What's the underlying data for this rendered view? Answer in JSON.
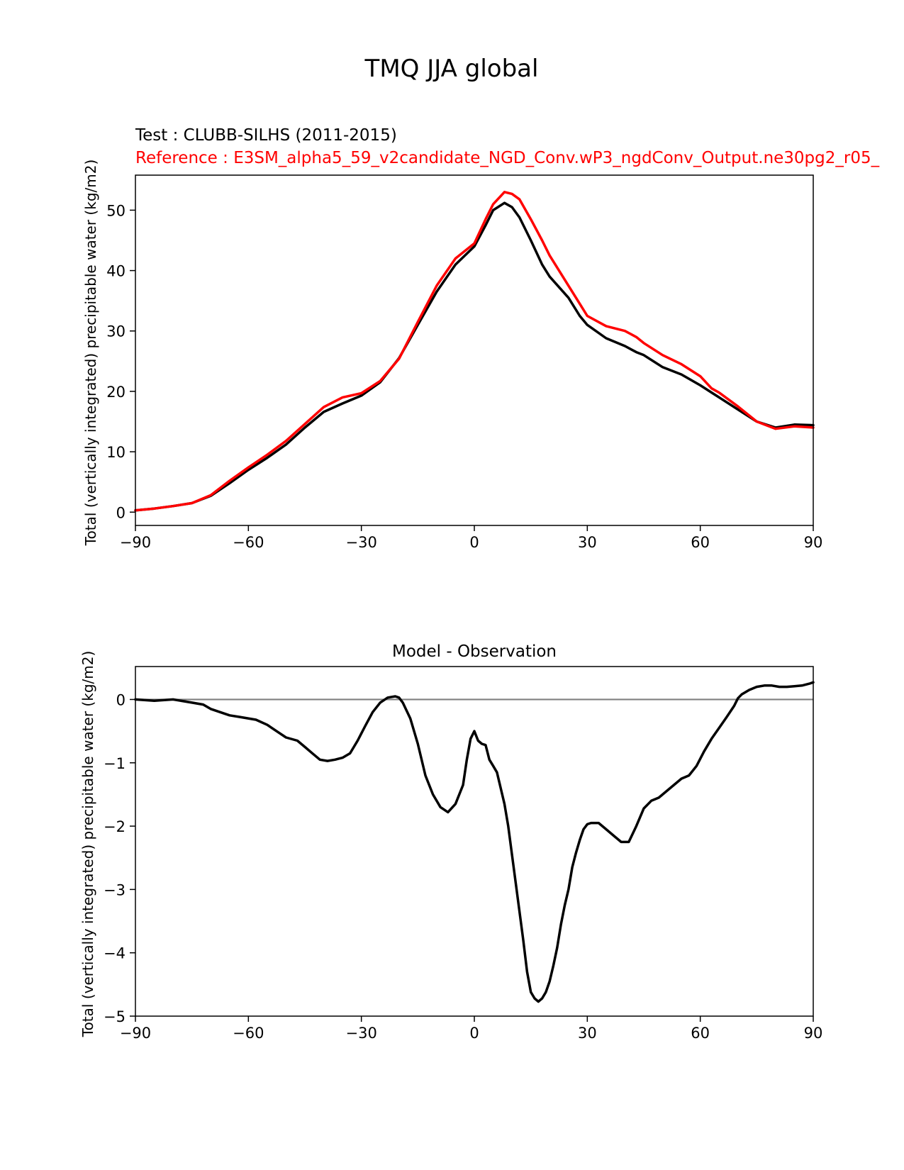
{
  "figure_title": "TMQ JJA global",
  "chart_data": [
    {
      "type": "line",
      "test_label": "Test : CLUBB-SILHS (2011-2015)",
      "reference_label": "Reference : E3SM_alpha5_59_v2candidate_NGD_Conv.wP3_ngdConv_Output.ne30pg2_r05_",
      "ylabel": "Total (vertically integrated) precipitable water (kg/m2)",
      "xlabel": "",
      "xlim": [
        -90,
        90
      ],
      "ylim": [
        -2.2,
        55.8
      ],
      "xticks": [
        -90,
        -60,
        -30,
        0,
        30,
        60,
        90
      ],
      "xtick_labels": [
        "−90",
        "−60",
        "−30",
        "0",
        "30",
        "60",
        "90"
      ],
      "yticks": [
        0,
        10,
        20,
        30,
        40,
        50
      ],
      "ytick_labels": [
        "0",
        "10",
        "20",
        "30",
        "40",
        "50"
      ],
      "x": [
        -90,
        -85,
        -80,
        -75,
        -70,
        -65,
        -60,
        -55,
        -50,
        -45,
        -40,
        -35,
        -30,
        -25,
        -20,
        -15,
        -10,
        -5,
        0,
        3,
        5,
        8,
        10,
        12,
        15,
        18,
        20,
        25,
        28,
        30,
        35,
        40,
        43,
        45,
        50,
        55,
        60,
        63,
        65,
        70,
        75,
        80,
        85,
        90
      ],
      "series": [
        {
          "name": "Test",
          "color": "#000000",
          "values": [
            0.3,
            0.6,
            1.0,
            1.5,
            2.7,
            4.8,
            7.0,
            9.0,
            11.2,
            14.0,
            16.6,
            18.0,
            19.3,
            21.5,
            25.5,
            31.0,
            36.5,
            41.0,
            44.0,
            47.5,
            50.0,
            51.2,
            50.5,
            48.8,
            45.0,
            41.0,
            39.0,
            35.5,
            32.5,
            31.0,
            28.8,
            27.5,
            26.5,
            26.0,
            24.0,
            22.8,
            21.0,
            19.8,
            19.0,
            17.0,
            15.0,
            14.0,
            14.5,
            14.4
          ]
        },
        {
          "name": "Reference",
          "color": "#ff0000",
          "values": [
            0.3,
            0.6,
            1.0,
            1.5,
            2.8,
            5.2,
            7.4,
            9.5,
            11.8,
            14.6,
            17.4,
            19.0,
            19.7,
            21.7,
            25.4,
            31.5,
            37.5,
            42.0,
            44.5,
            48.5,
            51.0,
            53.0,
            52.7,
            51.8,
            48.5,
            45.0,
            42.5,
            37.5,
            34.5,
            32.5,
            30.8,
            30.0,
            29.0,
            28.0,
            26.0,
            24.5,
            22.5,
            20.5,
            19.8,
            17.5,
            15.0,
            13.8,
            14.2,
            14.0
          ]
        }
      ]
    },
    {
      "type": "line",
      "title": "Model - Observation",
      "ylabel": "Total (vertically integrated) precipitable water (kg/m2)",
      "xlabel": "",
      "xlim": [
        -90,
        90
      ],
      "ylim": [
        -5.0,
        0.52
      ],
      "xticks": [
        -90,
        -60,
        -30,
        0,
        30,
        60,
        90
      ],
      "xtick_labels": [
        "−90",
        "−60",
        "−30",
        "0",
        "30",
        "60",
        "90"
      ],
      "yticks": [
        0,
        -1,
        -2,
        -3,
        -4,
        -5
      ],
      "ytick_labels": [
        "0",
        "−1",
        "−2",
        "−3",
        "−4",
        "−5"
      ],
      "zero_line_color": "#808080",
      "x": [
        -90,
        -85,
        -80,
        -75,
        -72,
        -70,
        -65,
        -62,
        -58,
        -55,
        -52,
        -50,
        -47,
        -45,
        -43,
        -41,
        -39,
        -37,
        -35,
        -33,
        -31,
        -29,
        -27,
        -25,
        -23,
        -21,
        -20,
        -19,
        -17,
        -15,
        -13,
        -11,
        -9,
        -7,
        -5,
        -3,
        -2,
        -1,
        0,
        1,
        2,
        3,
        4,
        5,
        6,
        7,
        8,
        9,
        10,
        11,
        12,
        13,
        14,
        15,
        16,
        17,
        18,
        19,
        20,
        21,
        22,
        23,
        24,
        25,
        26,
        27,
        28,
        29,
        30,
        31,
        33,
        35,
        37,
        39,
        41,
        43,
        45,
        47,
        49,
        51,
        53,
        55,
        57,
        59,
        61,
        63,
        65,
        67,
        69,
        70,
        71,
        73,
        75,
        77,
        79,
        81,
        83,
        85,
        87,
        89,
        90
      ],
      "series": [
        {
          "name": "Model - Observation",
          "color": "#000000",
          "values": [
            0,
            -0.02,
            0,
            -0.05,
            -0.08,
            -0.15,
            -0.25,
            -0.28,
            -0.32,
            -0.4,
            -0.52,
            -0.6,
            -0.65,
            -0.75,
            -0.85,
            -0.95,
            -0.97,
            -0.95,
            -0.92,
            -0.85,
            -0.65,
            -0.42,
            -0.2,
            -0.05,
            0.03,
            0.05,
            0.03,
            -0.05,
            -0.3,
            -0.7,
            -1.2,
            -1.5,
            -1.7,
            -1.78,
            -1.65,
            -1.35,
            -0.95,
            -0.62,
            -0.5,
            -0.65,
            -0.7,
            -0.72,
            -0.95,
            -1.05,
            -1.15,
            -1.4,
            -1.65,
            -2.0,
            -2.45,
            -2.9,
            -3.35,
            -3.8,
            -4.3,
            -4.62,
            -4.72,
            -4.77,
            -4.72,
            -4.62,
            -4.45,
            -4.2,
            -3.92,
            -3.55,
            -3.25,
            -3.0,
            -2.65,
            -2.42,
            -2.22,
            -2.05,
            -1.97,
            -1.95,
            -1.95,
            -2.05,
            -2.15,
            -2.25,
            -2.25,
            -2.0,
            -1.72,
            -1.6,
            -1.55,
            -1.45,
            -1.35,
            -1.25,
            -1.2,
            -1.05,
            -0.82,
            -0.62,
            -0.45,
            -0.28,
            -0.1,
            0.02,
            0.08,
            0.15,
            0.2,
            0.22,
            0.22,
            0.2,
            0.2,
            0.21,
            0.22,
            0.25,
            0.27
          ]
        }
      ]
    }
  ]
}
